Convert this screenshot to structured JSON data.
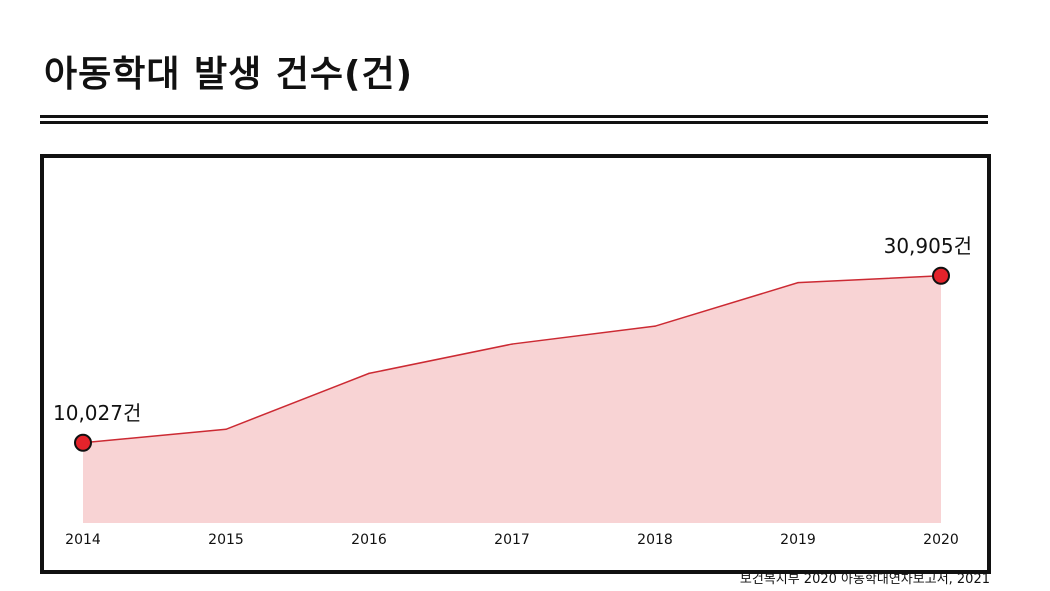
{
  "title": "아동학대 발생 건수(건)",
  "source": "보건복지부 2020 아동학대연차보고서, 2021",
  "colors": {
    "area_fill": "#f8d3d4",
    "line": "#cc2a33",
    "marker_fill": "#e4232b",
    "marker_stroke": "#111111",
    "frame": "#111111"
  },
  "chart_data": {
    "type": "area",
    "x": [
      "2014",
      "2015",
      "2016",
      "2017",
      "2018",
      "2019",
      "2020"
    ],
    "series": [
      {
        "values": [
          10027,
          11715,
          18700,
          22367,
          24604,
          30045,
          30905
        ]
      }
    ],
    "annotations": [
      {
        "index": 0,
        "text": "10,027건"
      },
      {
        "index": 6,
        "text": "30,905건"
      }
    ],
    "ylim": [
      0,
      36000
    ],
    "grid": false,
    "legend": "none"
  }
}
